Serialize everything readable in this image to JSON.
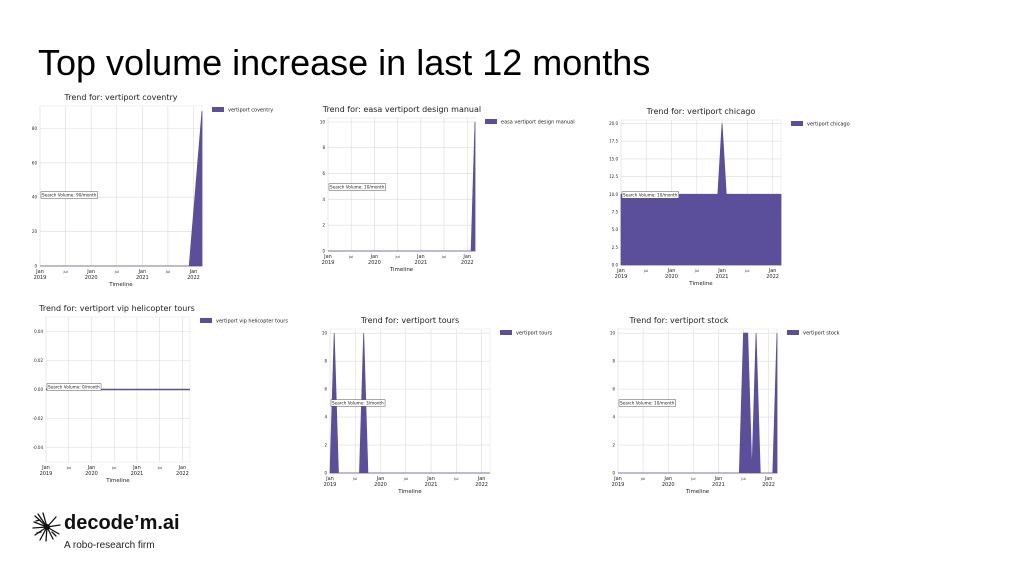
{
  "slide": {
    "title": "Top volume increase in last 12 months"
  },
  "brand": {
    "name": "decode’m.ai",
    "tagline": "A robo-research firm"
  },
  "colors": {
    "fill": "#5b4e9b",
    "grid": "#dcdcdc"
  },
  "chart_data": [
    {
      "type": "area",
      "title": "Trend for: vertiport coventry",
      "legend": "vertiport coventry",
      "annotation": "Search Volume: 90/month",
      "xlabel": "Timeline",
      "ylim": [
        0,
        93
      ],
      "yticks": [
        0,
        20,
        40,
        60,
        80
      ],
      "xticks": [
        {
          "t": 0,
          "l": "Jan\n2019"
        },
        {
          "t": 6,
          "l": "Jul"
        },
        {
          "t": 12,
          "l": "Jan\n2020"
        },
        {
          "t": 18,
          "l": "Jul"
        },
        {
          "t": 24,
          "l": "Jan\n2021"
        },
        {
          "t": 30,
          "l": "Jul"
        },
        {
          "t": 36,
          "l": "Jan\n2022"
        }
      ],
      "xmax": 38,
      "points": [
        [
          0,
          0
        ],
        [
          35,
          0
        ],
        [
          38,
          90
        ]
      ]
    },
    {
      "type": "area",
      "title": "Trend for: easa vertiport design manual",
      "legend": "easa vertiport design manual",
      "annotation": "Search Volume: 10/month",
      "xlabel": "Timeline",
      "ylim": [
        0,
        10.3
      ],
      "yticks": [
        0,
        2,
        4,
        6,
        8,
        10
      ],
      "xticks": [
        {
          "t": 0,
          "l": "Jan\n2019"
        },
        {
          "t": 6,
          "l": "Jul"
        },
        {
          "t": 12,
          "l": "Jan\n2020"
        },
        {
          "t": 18,
          "l": "Jul"
        },
        {
          "t": 24,
          "l": "Jan\n2021"
        },
        {
          "t": 30,
          "l": "Jul"
        },
        {
          "t": 36,
          "l": "Jan\n2022"
        }
      ],
      "xmax": 38,
      "points": [
        [
          0,
          0
        ],
        [
          37,
          0
        ],
        [
          38,
          10
        ]
      ]
    },
    {
      "type": "area",
      "title": "Trend for: vertiport chicago",
      "legend": "vertiport chicago",
      "annotation": "Search Volume: 10/month",
      "xlabel": "Timeline",
      "ylim": [
        0,
        20.5
      ],
      "yticks": [
        0.0,
        2.5,
        5.0,
        7.5,
        10.0,
        12.5,
        15.0,
        17.5,
        20.0
      ],
      "ytick_decimals": 1,
      "xticks": [
        {
          "t": 0,
          "l": "Jan\n2019"
        },
        {
          "t": 6,
          "l": "Jul"
        },
        {
          "t": 12,
          "l": "Jan\n2020"
        },
        {
          "t": 18,
          "l": "Jul"
        },
        {
          "t": 24,
          "l": "Jan\n2021"
        },
        {
          "t": 30,
          "l": "Jul"
        },
        {
          "t": 36,
          "l": "Jan\n2022"
        }
      ],
      "xmax": 38,
      "points": [
        [
          0,
          10
        ],
        [
          23,
          10
        ],
        [
          24,
          20
        ],
        [
          25,
          10
        ],
        [
          38,
          10
        ]
      ]
    },
    {
      "type": "line",
      "title": "Trend for: vertiport vip helicopter tours",
      "legend": "vertiport vip helicopter tours",
      "annotation": "Search Volume: 0/month",
      "xlabel": "Timeline",
      "ylim": [
        -0.05,
        0.05
      ],
      "yticks": [
        -0.04,
        -0.02,
        0.0,
        0.02,
        0.04
      ],
      "ytick_decimals": 2,
      "xticks": [
        {
          "t": 0,
          "l": "Jan\n2019"
        },
        {
          "t": 6,
          "l": "Jul"
        },
        {
          "t": 12,
          "l": "Jan\n2020"
        },
        {
          "t": 18,
          "l": "Jul"
        },
        {
          "t": 24,
          "l": "Jan\n2021"
        },
        {
          "t": 30,
          "l": "Jul"
        },
        {
          "t": 36,
          "l": "Jan\n2022"
        }
      ],
      "xmax": 38,
      "points": [
        [
          0,
          0
        ],
        [
          38,
          0
        ]
      ]
    },
    {
      "type": "area",
      "title": "Trend for: vertiport tours",
      "legend": "vertiport tours",
      "annotation": "Search Volume: 3/month",
      "xlabel": "Timeline",
      "ylim": [
        0,
        10.3
      ],
      "yticks": [
        0,
        2,
        4,
        6,
        8,
        10
      ],
      "xticks": [
        {
          "t": 0,
          "l": "Jan\n2019"
        },
        {
          "t": 6,
          "l": "Jul"
        },
        {
          "t": 12,
          "l": "Jan\n2020"
        },
        {
          "t": 18,
          "l": "Jul"
        },
        {
          "t": 24,
          "l": "Jan\n2021"
        },
        {
          "t": 30,
          "l": "Jul"
        },
        {
          "t": 36,
          "l": "Jan\n2022"
        }
      ],
      "xmax": 38,
      "points": [
        [
          0,
          0
        ],
        [
          1,
          10
        ],
        [
          2,
          0
        ],
        [
          7,
          0
        ],
        [
          8,
          10
        ],
        [
          9,
          0
        ],
        [
          38,
          0
        ]
      ]
    },
    {
      "type": "area",
      "title": "Trend for: vertiport stock",
      "legend": "vertiport stock",
      "annotation": "Search Volume: 10/month",
      "xlabel": "Timeline",
      "ylim": [
        0,
        10.3
      ],
      "yticks": [
        0,
        2,
        4,
        6,
        8,
        10
      ],
      "xticks": [
        {
          "t": 0,
          "l": "Jan\n2019"
        },
        {
          "t": 6,
          "l": "Jul"
        },
        {
          "t": 12,
          "l": "Jan\n2020"
        },
        {
          "t": 18,
          "l": "Jul"
        },
        {
          "t": 24,
          "l": "Jan\n2021"
        },
        {
          "t": 30,
          "l": "Jul"
        },
        {
          "t": 36,
          "l": "Jan\n2022"
        }
      ],
      "xmax": 38,
      "points": [
        [
          0,
          0
        ],
        [
          29,
          0
        ],
        [
          30,
          10
        ],
        [
          31,
          10
        ],
        [
          32,
          0
        ],
        [
          33,
          10
        ],
        [
          34,
          0
        ],
        [
          37,
          0
        ],
        [
          38,
          10
        ]
      ]
    }
  ]
}
